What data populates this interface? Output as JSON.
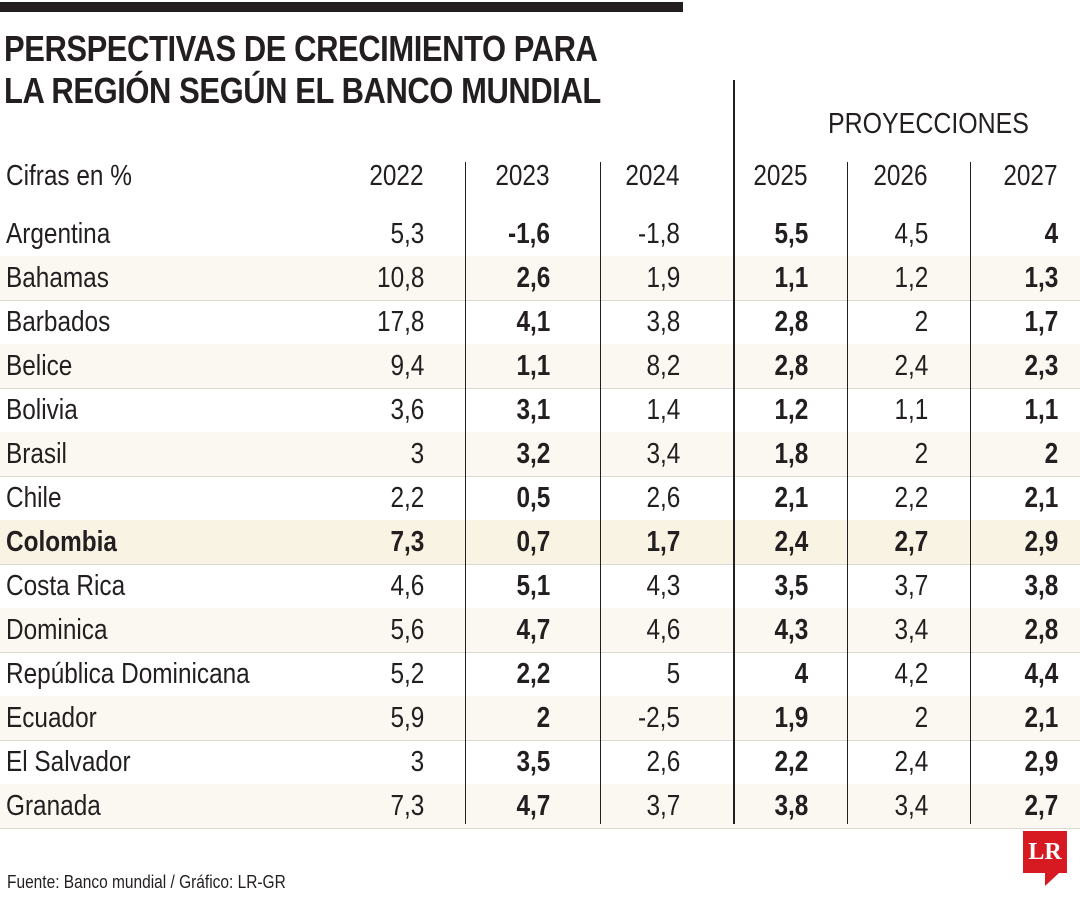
{
  "title_lines": [
    "PERSPECTIVAS DE CRECIMIENTO PARA",
    "LA REGIÓN SEGÚN EL BANCO MUNDIAL"
  ],
  "projections_label": "PROYECCIONES",
  "first_column_label": "Cifras en %",
  "source": "Fuente: Banco mundial  / Gráfico: LR-GR",
  "logo_text": "LR",
  "colors": {
    "text": "#231f20",
    "row_tint": "#fbf8f1",
    "highlight": "#f9f3e3",
    "logo": "#d71a21"
  },
  "chart_data": {
    "type": "table",
    "title": "PERSPECTIVAS DE CRECIMIENTO PARA LA REGIÓN SEGÚN EL BANCO MUNDIAL",
    "columns": [
      "2022",
      "2023",
      "2024",
      "2025",
      "2026",
      "2027"
    ],
    "bold_columns": [
      1,
      3,
      5
    ],
    "highlighted_row": "Colombia",
    "rows": [
      {
        "name": "Argentina",
        "values": [
          "5,3",
          "-1,6",
          "-1,8",
          "5,5",
          "4,5",
          "4"
        ]
      },
      {
        "name": "Bahamas",
        "values": [
          "10,8",
          "2,6",
          "1,9",
          "1,1",
          "1,2",
          "1,3"
        ]
      },
      {
        "name": "Barbados",
        "values": [
          "17,8",
          "4,1",
          "3,8",
          "2,8",
          "2",
          "1,7"
        ]
      },
      {
        "name": "Belice",
        "values": [
          "9,4",
          "1,1",
          "8,2",
          "2,8",
          "2,4",
          "2,3"
        ]
      },
      {
        "name": "Bolivia",
        "values": [
          "3,6",
          "3,1",
          "1,4",
          "1,2",
          "1,1",
          "1,1"
        ]
      },
      {
        "name": "Brasil",
        "values": [
          "3",
          "3,2",
          "3,4",
          "1,8",
          "2",
          "2"
        ]
      },
      {
        "name": "Chile",
        "values": [
          "2,2",
          "0,5",
          "2,6",
          "2,1",
          "2,2",
          "2,1"
        ]
      },
      {
        "name": "Colombia",
        "values": [
          "7,3",
          "0,7",
          "1,7",
          "2,4",
          "2,7",
          "2,9"
        ]
      },
      {
        "name": "Costa Rica",
        "values": [
          "4,6",
          "5,1",
          "4,3",
          "3,5",
          "3,7",
          "3,8"
        ]
      },
      {
        "name": "Dominica",
        "values": [
          "5,6",
          "4,7",
          "4,6",
          "4,3",
          "3,4",
          "2,8"
        ]
      },
      {
        "name": "República Dominicana",
        "values": [
          "5,2",
          "2,2",
          "5",
          "4",
          "4,2",
          "4,4"
        ]
      },
      {
        "name": "Ecuador",
        "values": [
          "5,9",
          "2",
          "-2,5",
          "1,9",
          "2",
          "2,1"
        ]
      },
      {
        "name": "El Salvador",
        "values": [
          "3",
          "3,5",
          "2,6",
          "2,2",
          "2,4",
          "2,9"
        ]
      },
      {
        "name": "Granada",
        "values": [
          "7,3",
          "4,7",
          "3,7",
          "3,8",
          "3,4",
          "2,7"
        ]
      }
    ]
  }
}
